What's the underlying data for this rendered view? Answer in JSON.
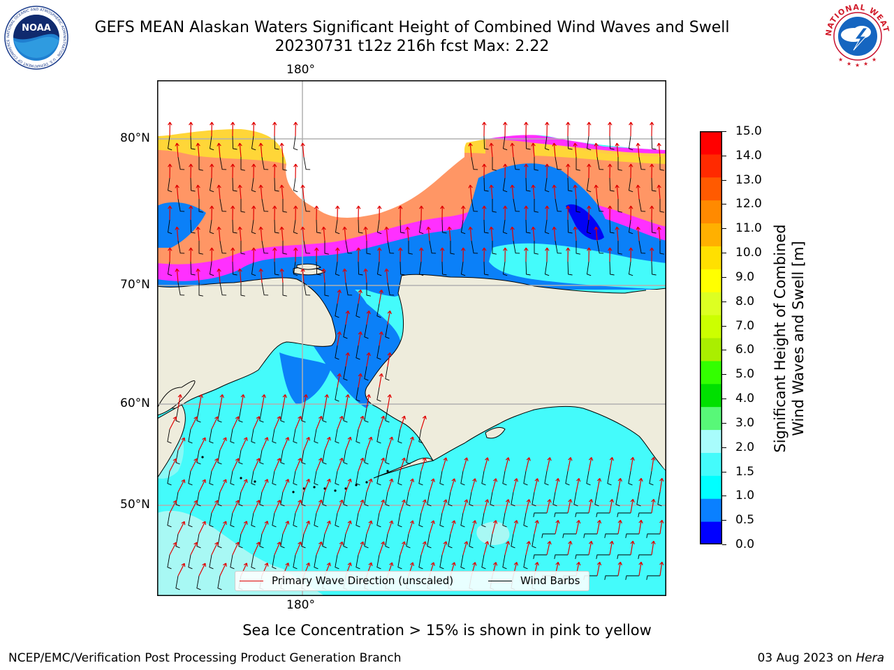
{
  "header": {
    "title_line1": "GEFS MEAN Alaskan Waters Significant Height of Combined Wind Waves and Swell",
    "title_line2": "20230731 t12z 216h fcst   Max: 2.22"
  },
  "logos": {
    "noaa_text": "NOAA",
    "noaa_ring_text": "NATIONAL OCEANIC AND ATMOSPHERIC ADMINISTRATION · U.S. DEPARTMENT OF COMMERCE",
    "nws_ring_text": "NATIONAL WEATHER SERVICE"
  },
  "map": {
    "top_lon_label": "180°",
    "bottom_lon_label": "180°",
    "lat_labels": [
      "80°N",
      "70°N",
      "60°N",
      "50°N"
    ],
    "legend": {
      "wave_label": "Primary Wave Direction (unscaled)",
      "wind_label": "Wind Barbs",
      "wave_color": "#e00000",
      "wind_color": "#000000"
    },
    "colors": {
      "land": "#eeecdc",
      "sea_main": "#44fbfb",
      "sea_light": "#a8f8f4",
      "sea_blue": "#0b80f8",
      "sea_dark": "#0202f5",
      "ice_pink": "#ff30ff",
      "ice_orange": "#ffa84a",
      "ice_yellow": "#ffdd33"
    }
  },
  "colorbar": {
    "title_line1": "Significant Height of Combined",
    "title_line2": "Wind Waves and Swell [m]",
    "ticks": [
      "15.0",
      "14.0",
      "13.0",
      "12.0",
      "11.0",
      "10.0",
      "9.0",
      "8.0",
      "7.0",
      "6.0",
      "5.0",
      "4.0",
      "3.0",
      "2.0",
      "1.5",
      "1.0",
      "0.5",
      "0.0"
    ],
    "segment_colors": [
      "#0000ff",
      "#0a80ff",
      "#00ffff",
      "#44fbfb",
      "#a8fcfc",
      "#58f878",
      "#00e000",
      "#33ff00",
      "#aaee00",
      "#ccff00",
      "#ddff22",
      "#ffff00",
      "#ffe000",
      "#ffb000",
      "#ff8a00",
      "#ff5a00",
      "#ff2a00",
      "#ff0000"
    ]
  },
  "caption": "Sea Ice Concentration > 15% is shown in pink to yellow",
  "footer": {
    "left": "NCEP/EMC/Verification Post Processing Product Generation Branch",
    "right_date": "03 Aug 2023 on",
    "right_host": "Hera"
  }
}
